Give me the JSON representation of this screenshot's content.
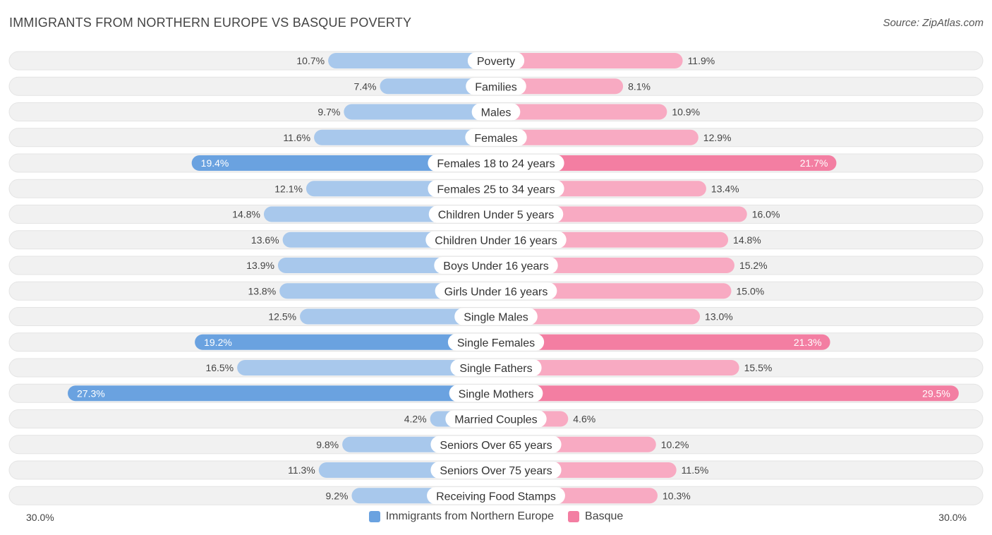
{
  "header": {
    "title": "IMMIGRANTS FROM NORTHERN EUROPE VS BASQUE POVERTY",
    "source": "Source: ZipAtlas.com"
  },
  "axis": {
    "left_label": "30.0%",
    "right_label": "30.0%"
  },
  "colors": {
    "left_strong": "#6aa2e0",
    "left_light": "#a8c8ec",
    "right_strong": "#f37ea2",
    "right_light": "#f8aac2",
    "track": "#f1f1f1"
  },
  "legend": {
    "left": "Immigrants from Northern Europe",
    "right": "Basque"
  },
  "chart_data": {
    "type": "bar",
    "orientation": "horizontal-diverging",
    "title": "IMMIGRANTS FROM NORTHERN EUROPE VS BASQUE POVERTY",
    "xlim": [
      -30,
      30
    ],
    "categories": [
      "Poverty",
      "Families",
      "Males",
      "Females",
      "Females 18 to 24 years",
      "Females 25 to 34 years",
      "Children Under 5 years",
      "Children Under 16 years",
      "Boys Under 16 years",
      "Girls Under 16 years",
      "Single Males",
      "Single Females",
      "Single Fathers",
      "Single Mothers",
      "Married Couples",
      "Seniors Over 65 years",
      "Seniors Over 75 years",
      "Receiving Food Stamps"
    ],
    "series": [
      {
        "name": "Immigrants from Northern Europe",
        "values": [
          10.7,
          7.4,
          9.7,
          11.6,
          19.4,
          12.1,
          14.8,
          13.6,
          13.9,
          13.8,
          12.5,
          19.2,
          16.5,
          27.3,
          4.2,
          9.8,
          11.3,
          9.2
        ],
        "labels": [
          "10.7%",
          "7.4%",
          "9.7%",
          "11.6%",
          "19.4%",
          "12.1%",
          "14.8%",
          "13.6%",
          "13.9%",
          "13.8%",
          "12.5%",
          "19.2%",
          "16.5%",
          "27.3%",
          "4.2%",
          "9.8%",
          "11.3%",
          "9.2%"
        ]
      },
      {
        "name": "Basque",
        "values": [
          11.9,
          8.1,
          10.9,
          12.9,
          21.7,
          13.4,
          16.0,
          14.8,
          15.2,
          15.0,
          13.0,
          21.3,
          15.5,
          29.5,
          4.6,
          10.2,
          11.5,
          10.3
        ],
        "labels": [
          "11.9%",
          "8.1%",
          "10.9%",
          "12.9%",
          "21.7%",
          "13.4%",
          "16.0%",
          "14.8%",
          "15.2%",
          "15.0%",
          "13.0%",
          "21.3%",
          "15.5%",
          "29.5%",
          "4.6%",
          "10.2%",
          "11.5%",
          "10.3%"
        ]
      }
    ]
  }
}
